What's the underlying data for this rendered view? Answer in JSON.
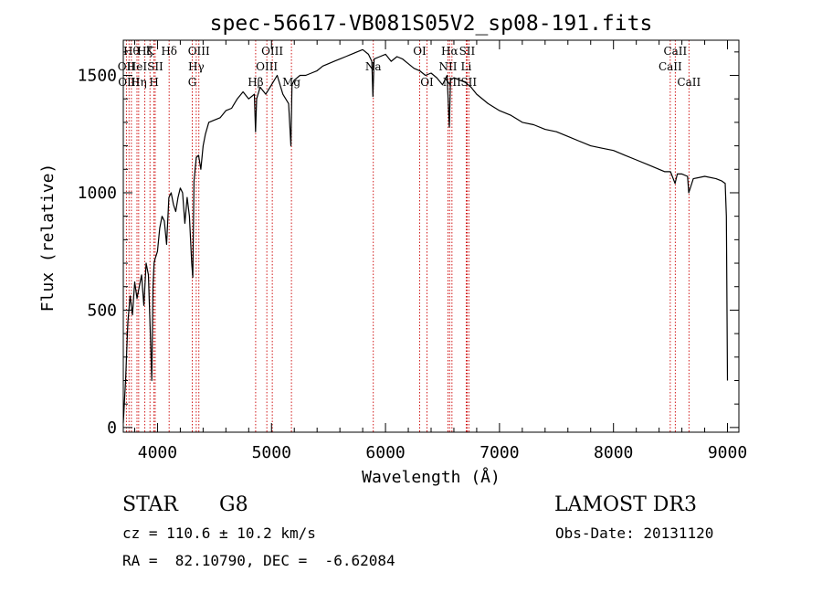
{
  "chart_data": {
    "type": "line",
    "title": "spec-56617-VB081S05V2_sp08-191.fits",
    "xlabel": "Wavelength (Å)",
    "ylabel": "Flux (relative)",
    "xlim": [
      3700,
      9100
    ],
    "ylim": [
      -20,
      1650
    ],
    "xticks": [
      4000,
      5000,
      6000,
      7000,
      8000,
      9000
    ],
    "yticks": [
      0,
      500,
      1000,
      1500
    ],
    "xtick_labels": [
      "4000",
      "5000",
      "6000",
      "7000",
      "8000",
      "9000"
    ],
    "ytick_labels": [
      "0",
      "500",
      "1000",
      "1500"
    ],
    "color": "#000000",
    "line_color": "#cc0000",
    "spectrum": {
      "x": [
        3700,
        3720,
        3740,
        3760,
        3780,
        3800,
        3820,
        3840,
        3860,
        3880,
        3900,
        3920,
        3940,
        3950,
        3960,
        3970,
        3980,
        4000,
        4020,
        4040,
        4060,
        4080,
        4100,
        4120,
        4140,
        4160,
        4180,
        4200,
        4220,
        4240,
        4260,
        4280,
        4300,
        4310,
        4320,
        4340,
        4360,
        4380,
        4400,
        4420,
        4450,
        4500,
        4550,
        4600,
        4650,
        4700,
        4750,
        4800,
        4850,
        4860,
        4870,
        4900,
        4950,
        5000,
        5050,
        5100,
        5150,
        5170,
        5180,
        5200,
        5250,
        5300,
        5350,
        5400,
        5450,
        5500,
        5550,
        5600,
        5650,
        5700,
        5750,
        5800,
        5850,
        5880,
        5890,
        5900,
        5950,
        6000,
        6050,
        6100,
        6150,
        6200,
        6250,
        6300,
        6350,
        6400,
        6450,
        6500,
        6540,
        6560,
        6570,
        6600,
        6650,
        6700,
        6750,
        6800,
        6900,
        7000,
        7100,
        7200,
        7300,
        7400,
        7500,
        7600,
        7700,
        7800,
        7900,
        8000,
        8100,
        8200,
        8300,
        8400,
        8450,
        8500,
        8540,
        8560,
        8600,
        8650,
        8660,
        8700,
        8800,
        8900,
        8950,
        8980,
        8990,
        9000
      ],
      "y": [
        20,
        200,
        450,
        560,
        480,
        620,
        550,
        600,
        650,
        520,
        700,
        650,
        350,
        200,
        600,
        700,
        720,
        750,
        850,
        900,
        880,
        780,
        980,
        1000,
        950,
        920,
        980,
        1020,
        1000,
        870,
        980,
        900,
        700,
        640,
        1050,
        1150,
        1160,
        1100,
        1200,
        1250,
        1300,
        1310,
        1320,
        1350,
        1360,
        1400,
        1430,
        1400,
        1420,
        1260,
        1400,
        1450,
        1420,
        1460,
        1500,
        1420,
        1380,
        1200,
        1460,
        1480,
        1500,
        1500,
        1510,
        1520,
        1540,
        1550,
        1560,
        1570,
        1580,
        1590,
        1600,
        1610,
        1590,
        1560,
        1410,
        1570,
        1580,
        1590,
        1560,
        1580,
        1570,
        1550,
        1530,
        1520,
        1500,
        1510,
        1490,
        1460,
        1500,
        1280,
        1480,
        1490,
        1480,
        1470,
        1450,
        1420,
        1380,
        1350,
        1330,
        1300,
        1290,
        1270,
        1260,
        1240,
        1220,
        1200,
        1190,
        1180,
        1160,
        1140,
        1120,
        1100,
        1090,
        1090,
        1040,
        1080,
        1080,
        1070,
        1000,
        1060,
        1070,
        1060,
        1050,
        1040,
        900,
        200
      ]
    },
    "spectral_lines": [
      {
        "wavelength": 3727,
        "label": "OII",
        "row": 1
      },
      {
        "wavelength": 3750,
        "label": "OIII",
        "row": 2
      },
      {
        "wavelength": 3771,
        "label": "Hθ",
        "row": 0
      },
      {
        "wavelength": 3820,
        "label": "HeI",
        "row": 1
      },
      {
        "wavelength": 3835,
        "label": "Hη",
        "row": 2
      },
      {
        "wavelength": 3889,
        "label": "Hζ",
        "row": 0
      },
      {
        "wavelength": 3934,
        "label": "K",
        "row": 0
      },
      {
        "wavelength": 3969,
        "label": "H",
        "row": 2
      },
      {
        "wavelength": 3980,
        "label": "SII",
        "row": 1
      },
      {
        "wavelength": 4102,
        "label": "Hδ",
        "row": 0
      },
      {
        "wavelength": 4305,
        "label": "G",
        "row": 2
      },
      {
        "wavelength": 4340,
        "label": "Hγ",
        "row": 1
      },
      {
        "wavelength": 4363,
        "label": "OIII",
        "row": 0
      },
      {
        "wavelength": 4861,
        "label": "Hβ",
        "row": 2
      },
      {
        "wavelength": 4959,
        "label": "OIII",
        "row": 1
      },
      {
        "wavelength": 5007,
        "label": "OIII",
        "row": 0
      },
      {
        "wavelength": 5175,
        "label": "Mg",
        "row": 2
      },
      {
        "wavelength": 5893,
        "label": "Na",
        "row": 1
      },
      {
        "wavelength": 6300,
        "label": "OI",
        "row": 0
      },
      {
        "wavelength": 6364,
        "label": "OI",
        "row": 2
      },
      {
        "wavelength": 6548,
        "label": "NII",
        "row": 1
      },
      {
        "wavelength": 6563,
        "label": "Hα",
        "row": 0
      },
      {
        "wavelength": 6583,
        "label": "NII",
        "row": 2
      },
      {
        "wavelength": 6708,
        "label": "Li",
        "row": 1
      },
      {
        "wavelength": 6716,
        "label": "SII",
        "row": 0
      },
      {
        "wavelength": 6731,
        "label": "SII",
        "row": 2
      },
      {
        "wavelength": 8498,
        "label": "CaII",
        "row": 1
      },
      {
        "wavelength": 8542,
        "label": "CaII",
        "row": 0
      },
      {
        "wavelength": 8662,
        "label": "CaII",
        "row": 2
      }
    ]
  },
  "info": {
    "object_class": "STAR",
    "subclass": "G8",
    "survey": "LAMOST DR3",
    "redshift_text": "cz = 110.6 ± 10.2 km/s",
    "obs_date": "Obs-Date: 20131120",
    "coords_text": "RA =  82.10790, DEC =  -6.62084"
  }
}
